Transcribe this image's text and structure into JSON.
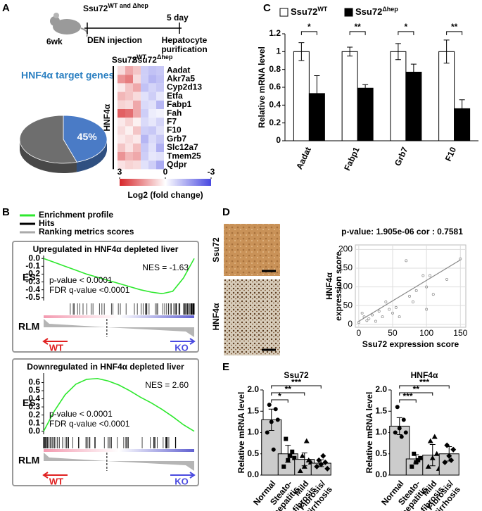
{
  "figure": {
    "panel_labels": [
      "A",
      "B",
      "C",
      "D",
      "E"
    ],
    "timeline": {
      "strain": "Ssu72",
      "strain_sup": "WT and Δhep",
      "age": "6wk",
      "step1": "DEN injection",
      "step2_time": "5 day",
      "step2": [
        "Hepatocyte",
        "purification"
      ]
    },
    "gsea_legend": [
      "Enrichment profile",
      "Hits",
      "Ranking metrics scores"
    ],
    "ihc_labels": [
      "Ssu72",
      "HNF4α"
    ]
  },
  "chart_data": [
    {
      "type": "pie",
      "title": "HNF4α target genes",
      "values": [
        45,
        55
      ],
      "value_labels": [
        "45%",
        null
      ],
      "colors": [
        "#4a7bc6",
        "#6e6e6e"
      ]
    },
    {
      "type": "heatmap",
      "rows": [
        "Aadat",
        "Akr7a5",
        "Cyp2d13",
        "Etfa",
        "Fabp1",
        "Fah",
        "F7",
        "F10",
        "Grb7",
        "Slc12a7",
        "Tmem25",
        "Qdpr"
      ],
      "values": [
        [
          0.5,
          1.2,
          0.8,
          -0.8,
          -1.0,
          -0.9
        ],
        [
          1.5,
          1.8,
          0.5,
          -0.8,
          -1.2,
          -1.0
        ],
        [
          0.3,
          0.8,
          1.2,
          -1.0,
          -0.7,
          -0.9
        ],
        [
          1.0,
          0.8,
          0.5,
          -0.5,
          -0.8,
          -0.4
        ],
        [
          0.6,
          0.5,
          1.2,
          -0.6,
          -0.5,
          -1.2
        ],
        [
          2.2,
          2.0,
          1.2,
          -0.8,
          -0.3,
          -0.2
        ],
        [
          0.3,
          0.6,
          0.2,
          -0.6,
          -0.4,
          -0.7
        ],
        [
          0.5,
          0.2,
          0.8,
          -0.8,
          -0.9,
          -0.5
        ],
        [
          0.3,
          0.5,
          0.3,
          -1.2,
          -0.6,
          -0.9
        ],
        [
          0.8,
          0.4,
          0.9,
          -0.9,
          -0.5,
          -1.3
        ],
        [
          1.5,
          1.0,
          1.2,
          -0.8,
          -0.4,
          -0.5
        ],
        [
          0.4,
          0.6,
          0.5,
          -0.5,
          -0.8,
          -1.4
        ]
      ],
      "column_groups": [
        {
          "name": "Ssu72",
          "sup": "WT"
        },
        {
          "name": "Ssu72",
          "sup": "Δhep"
        }
      ],
      "row_group": "HNF4α",
      "zlim": [
        -3,
        3
      ],
      "colorbar_ticks": [
        3,
        0,
        -3
      ],
      "colorbar_label": "Log2 (fold change)",
      "colors": {
        "high": "#d7262a",
        "low": "#4848e0"
      }
    },
    {
      "type": "line",
      "title": "Upregulated in HNF4α depleted liver",
      "ylabel": "ES",
      "ylabel2": "RLM",
      "values": [
        0,
        -0.05,
        -0.1,
        -0.15,
        -0.2,
        -0.24,
        -0.28,
        -0.32,
        -0.36,
        -0.4,
        -0.43,
        -0.45,
        -0.42,
        -0.25,
        0
      ],
      "ylim": [
        -0.52,
        0.02
      ],
      "yticks": [
        {
          "value": 0,
          "label": "0.0"
        },
        -0.1,
        -0.2,
        -0.3,
        -0.4,
        -0.5
      ],
      "annotations": [
        "NES = -1.63",
        "p-value < 0.0001",
        "FDR q-value <0.0001"
      ],
      "left_label": "WT",
      "right_label": "KO",
      "color": "#2ee82e"
    },
    {
      "type": "line",
      "title": "Downregulated in HNF4α depleted liver",
      "ylabel": "ES",
      "ylabel2": "RLM",
      "values": [
        0,
        0.25,
        0.45,
        0.58,
        0.64,
        0.65,
        0.62,
        0.57,
        0.5,
        0.42,
        0.35,
        0.27,
        0.18,
        0.08,
        0
      ],
      "ylim": [
        -0.02,
        0.7
      ],
      "yticks": [
        {
          "value": 0,
          "label": "0.0"
        },
        0.1,
        0.2,
        0.3,
        0.4,
        0.5,
        0.6
      ],
      "annotations": [
        "NES = 2.60",
        "p-value < 0.0001",
        "FDR q-value <0.0001"
      ],
      "left_label": "WT",
      "right_label": "KO",
      "color": "#2ee82e"
    },
    {
      "type": "bar",
      "ylabel": "Relative mRNA level",
      "categories": [
        "Aadat",
        "Fabp1",
        "Grb7",
        "F10"
      ],
      "series": [
        {
          "name": "Ssu72",
          "name_sup": "WT",
          "color": "#ffffff",
          "values": [
            1,
            1,
            1,
            1
          ],
          "errors": [
            0.1,
            0.05,
            0.09,
            0.13
          ]
        },
        {
          "name": "Ssu72",
          "name_sup": "Δhep",
          "color": "#000000",
          "values": [
            0.53,
            0.59,
            0.77,
            0.36
          ],
          "errors": [
            0.2,
            0.04,
            0.09,
            0.1
          ]
        }
      ],
      "significance": [
        "*",
        "**",
        "*",
        "**"
      ],
      "ylim": [
        0,
        1.2
      ],
      "yticks": [
        0,
        0.2,
        0.4,
        0.6,
        0.8,
        1,
        1.2
      ]
    },
    {
      "type": "scatter",
      "title": "p-value: 1.905e-06 cor : 0.7581",
      "xlabel": "Ssu72 expression score",
      "ylabel": [
        "HNF4α",
        "expression score"
      ],
      "x": [
        0,
        5,
        8,
        12,
        15,
        20,
        25,
        30,
        35,
        40,
        45,
        50,
        55,
        60,
        70,
        75,
        80,
        85,
        95,
        100,
        100,
        105,
        110,
        130,
        150
      ],
      "y": [
        5,
        30,
        20,
        10,
        15,
        25,
        8,
        35,
        20,
        60,
        40,
        30,
        45,
        20,
        170,
        75,
        60,
        90,
        130,
        100,
        40,
        130,
        80,
        120,
        175
      ],
      "fit_x": [
        0,
        150
      ],
      "fit_y": [
        8,
        172
      ],
      "xlim": [
        -5,
        158
      ],
      "ylim": [
        -8,
        212
      ],
      "xticks": [
        0,
        50,
        100,
        150
      ],
      "yticks": [
        0,
        50,
        100,
        150,
        200
      ],
      "grid": true,
      "color": "#888888"
    },
    {
      "type": "bar",
      "title": "Ssu72",
      "ylabel": "Relative mRNA level",
      "categories": [
        [
          "Normal"
        ],
        [
          "Steato-",
          "hepatitis"
        ],
        [
          "Mild",
          "fibrosis"
        ],
        [
          "Fibrosis/",
          "Cirrhosis"
        ]
      ],
      "values": [
        1.3,
        0.5,
        0.37,
        0.28
      ],
      "errors": [
        0.25,
        0.2,
        0.15,
        0.08
      ],
      "color": "#cccccc",
      "points": [
        [
          1.0,
          1.25,
          1.55,
          1.65,
          0.6,
          1.3
        ],
        [
          0.2,
          0.35,
          0.55,
          0.85,
          0.45,
          0.4
        ],
        [
          0.1,
          0.2,
          0.35,
          0.45,
          0.8,
          0.3
        ],
        [
          0.2,
          0.25,
          0.3,
          0.35,
          0.45,
          0.15
        ]
      ],
      "significance": [
        null,
        "*",
        "**",
        "***"
      ],
      "ylim": [
        0,
        2
      ],
      "yticks": [
        {
          "value": 0,
          "label": "0.0"
        },
        0.5,
        {
          "value": 1,
          "label": "1.0"
        },
        1.5,
        {
          "value": 2,
          "label": "2.0"
        }
      ]
    },
    {
      "type": "bar",
      "title": "HNF4α",
      "ylabel": "Relative mRNA level",
      "categories": [
        [
          "Normal"
        ],
        [
          "Steato-",
          "hepatitis"
        ],
        [
          "Mild",
          "fibrosis"
        ],
        [
          "Fibrosis/",
          "Cirrhosis"
        ]
      ],
      "values": [
        1.15,
        0.38,
        0.47,
        0.5
      ],
      "errors": [
        0.2,
        0.1,
        0.25,
        0.17
      ],
      "color": "#cccccc",
      "points": [
        [
          1.0,
          1.1,
          1.3,
          1.6,
          0.9,
          1.0
        ],
        [
          0.2,
          0.3,
          0.4,
          0.5,
          0.35
        ],
        [
          0.2,
          0.4,
          0.5,
          0.8,
          0.9,
          0.15
        ],
        [
          0.3,
          0.45,
          0.6,
          0.7,
          0.35
        ]
      ],
      "significance": [
        null,
        "***",
        "**",
        "***"
      ],
      "ylim": [
        0,
        2
      ],
      "yticks": [
        {
          "value": 0,
          "label": "0.0"
        },
        0.5,
        {
          "value": 1,
          "label": "1.0"
        },
        1.5,
        {
          "value": 2,
          "label": "2.0"
        }
      ]
    }
  ]
}
